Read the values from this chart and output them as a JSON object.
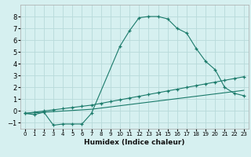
{
  "xlabel": "Humidex (Indice chaleur)",
  "bg_color": "#d6f0f0",
  "grid_color": "#b8dada",
  "line_color": "#1a7a6a",
  "xlim": [
    -0.5,
    23.5
  ],
  "ylim": [
    -1.5,
    9.0
  ],
  "yticks": [
    -1,
    0,
    1,
    2,
    3,
    4,
    5,
    6,
    7,
    8
  ],
  "xticks": [
    0,
    1,
    2,
    3,
    4,
    5,
    6,
    7,
    8,
    9,
    10,
    11,
    12,
    13,
    14,
    15,
    16,
    17,
    18,
    19,
    20,
    21,
    22,
    23
  ],
  "series1_x": [
    0,
    1,
    2,
    3,
    4,
    5,
    6,
    7,
    10,
    11,
    12,
    13,
    14,
    15,
    16,
    17,
    18,
    19,
    20,
    21,
    22,
    23
  ],
  "series1_y": [
    -0.2,
    -0.3,
    -0.1,
    -1.2,
    -1.1,
    -1.1,
    -1.1,
    -0.2,
    5.5,
    6.8,
    7.9,
    8.0,
    8.0,
    7.8,
    7.0,
    6.6,
    5.3,
    4.2,
    3.5,
    2.0,
    1.5,
    1.3
  ],
  "series2_x": [
    0,
    1,
    2,
    3,
    4,
    5,
    6,
    7,
    8,
    9,
    10,
    11,
    12,
    13,
    14,
    15,
    16,
    17,
    18,
    19,
    20,
    21,
    22,
    23
  ],
  "series2_y": [
    -0.2,
    -0.1,
    0.0,
    0.1,
    0.2,
    0.3,
    0.4,
    0.5,
    0.65,
    0.8,
    0.95,
    1.1,
    1.25,
    1.4,
    1.55,
    1.7,
    1.85,
    2.0,
    2.15,
    2.3,
    2.45,
    2.6,
    2.75,
    2.9
  ],
  "series3_x": [
    0,
    1,
    2,
    3,
    4,
    5,
    6,
    7,
    8,
    9,
    10,
    11,
    12,
    13,
    14,
    15,
    16,
    17,
    18,
    19,
    20,
    21,
    22,
    23
  ],
  "series3_y": [
    -0.2,
    -0.15,
    -0.1,
    -0.05,
    0.0,
    0.05,
    0.1,
    0.15,
    0.25,
    0.35,
    0.45,
    0.55,
    0.65,
    0.75,
    0.85,
    0.95,
    1.05,
    1.15,
    1.25,
    1.35,
    1.45,
    1.55,
    1.65,
    1.75
  ]
}
